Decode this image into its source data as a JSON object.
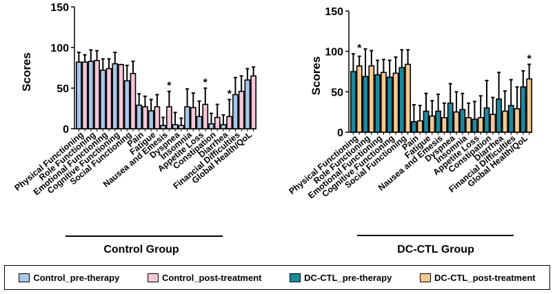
{
  "chart_data": [
    {
      "type": "bar",
      "ylabel": "Scores",
      "ylim": [
        0,
        150
      ],
      "yticks": [
        0,
        50,
        100,
        150
      ],
      "group_label": "Control Group",
      "categories": [
        "Physical Functioning",
        "Role Functioning",
        "Emotional Functioning",
        "Cognitive Functioning",
        "Social Functioning",
        "Pain",
        "Fatigue",
        "Nausea and Emesis",
        "Dyspnea",
        "Insomnia",
        "Appetite Loss",
        "Constipation",
        "Diarrhea",
        "Financial Difficulties",
        "Global Health/QoL"
      ],
      "series": [
        {
          "name": "Control_pre-therapy",
          "color": "#a9c6ea",
          "values": [
            82,
            83,
            72,
            80,
            59,
            29,
            22,
            4,
            5,
            27,
            15,
            6,
            5,
            42,
            60
          ],
          "error_upper": [
            94,
            97,
            86,
            94,
            78,
            43,
            36,
            14,
            20,
            49,
            34,
            19,
            17,
            63,
            74
          ]
        },
        {
          "name": "Control_post-treatment",
          "color": "#f5c6d8",
          "values": [
            82,
            84,
            74,
            79,
            68,
            27,
            27,
            27,
            4,
            26,
            30,
            14,
            15,
            46,
            65
          ],
          "error_upper": [
            91,
            96,
            86,
            79,
            83,
            40,
            42,
            46,
            13,
            44,
            50,
            30,
            36,
            65,
            76
          ]
        }
      ],
      "significance": [
        "",
        "",
        "",
        "",
        "",
        "",
        "",
        "*",
        "",
        "",
        "*",
        "",
        "*",
        "",
        ""
      ]
    },
    {
      "type": "bar",
      "ylabel": "Scores",
      "ylim": [
        0,
        150
      ],
      "yticks": [
        0,
        50,
        100,
        150
      ],
      "group_label": "DC-CTL Group",
      "categories": [
        "Physical Functioning",
        "Role Functioning",
        "Emotional Functioning",
        "Cognitive Functioning",
        "Social Functioning",
        "Pain",
        "Fatigue",
        "Nausea and Emesis",
        "Dyspnea",
        "Insomnia",
        "Appetite Loss",
        "Constipation",
        "Diarrhea",
        "Financial Difficulties",
        "Global Health/QoL"
      ],
      "series": [
        {
          "name": "DC-CTL_pre-therapy",
          "color": "#1b8a9e",
          "values": [
            75,
            69,
            71,
            68,
            80,
            13,
            26,
            26,
            36,
            28,
            16,
            30,
            41,
            33,
            56
          ],
          "error_upper": [
            97,
            103,
            89,
            89,
            102,
            34,
            48,
            47,
            60,
            48,
            38,
            64,
            74,
            65,
            76
          ]
        },
        {
          "name": "DC-CTL_post-treatment",
          "color": "#f5c98f",
          "values": [
            82,
            82,
            74,
            73,
            84,
            14,
            20,
            18,
            25,
            18,
            18,
            22,
            26,
            29,
            66
          ],
          "error_upper": [
            94,
            101,
            90,
            93,
            102,
            33,
            39,
            36,
            50,
            36,
            45,
            43,
            51,
            56,
            84
          ]
        }
      ],
      "significance": [
        "*",
        "",
        "",
        "",
        "",
        "",
        "",
        "",
        "",
        "",
        "",
        "",
        "",
        "",
        "*"
      ]
    }
  ],
  "legend": [
    {
      "label": "Control_pre-therapy",
      "color": "#a9c6ea"
    },
    {
      "label": "Control_post-treatment",
      "color": "#f5c6d8"
    },
    {
      "label": "DC-CTL_pre-therapy",
      "color": "#1b8a9e"
    },
    {
      "label": "DC-CTL_post-treatment",
      "color": "#f5c98f"
    }
  ]
}
